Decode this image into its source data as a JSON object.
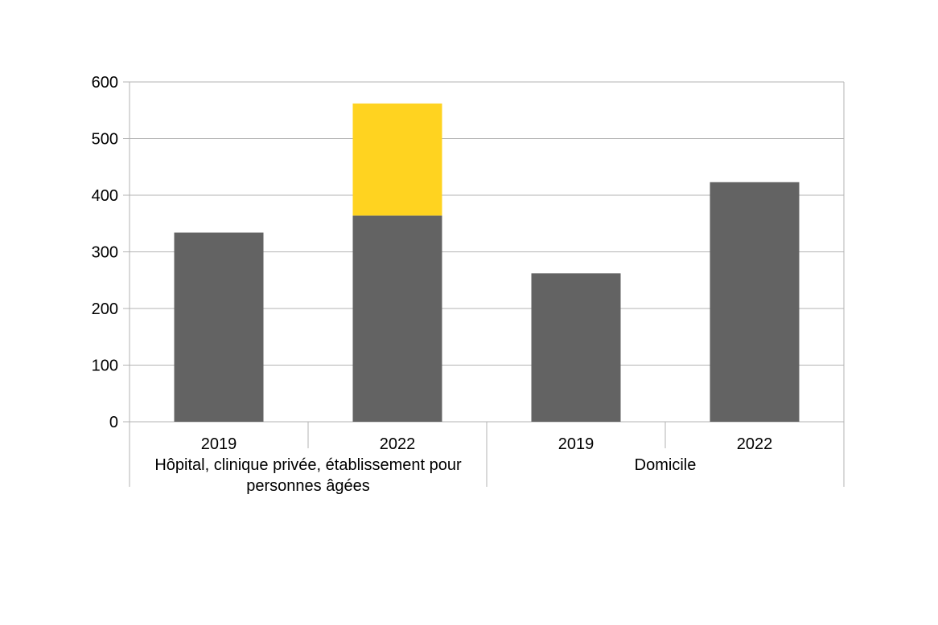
{
  "chart_data": {
    "type": "bar",
    "stacked": true,
    "title": "",
    "xlabel": "",
    "ylabel": "",
    "ylim": [
      0,
      600
    ],
    "yticks": [
      0,
      100,
      200,
      300,
      400,
      500,
      600
    ],
    "grid": true,
    "legend": "none",
    "groups": [
      {
        "label": "Hôpital, clinique privée, établissement pour personnes âgées",
        "label_lines": [
          "Hôpital, clinique privée, établissement pour",
          "personnes âgées"
        ],
        "categories": [
          "2019",
          "2022"
        ]
      },
      {
        "label": "Domicile",
        "label_lines": [
          "Domicile"
        ],
        "categories": [
          "2019",
          "2022"
        ]
      }
    ],
    "categories": [
      "2019",
      "2022",
      "2019",
      "2022"
    ],
    "series": [
      {
        "color": "#636363",
        "values": [
          334,
          364,
          262,
          423
        ]
      },
      {
        "color": "#ffd320",
        "values": [
          0,
          198,
          0,
          0
        ]
      }
    ]
  }
}
